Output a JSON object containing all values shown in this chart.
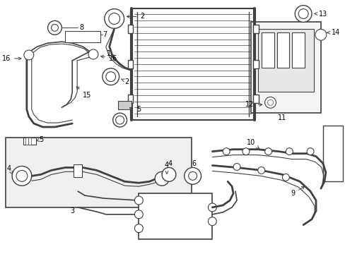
{
  "bg_color": "#ffffff",
  "line_color": "#404040",
  "label_color": "#000000",
  "fig_width": 4.89,
  "fig_height": 3.6,
  "dpi": 100
}
